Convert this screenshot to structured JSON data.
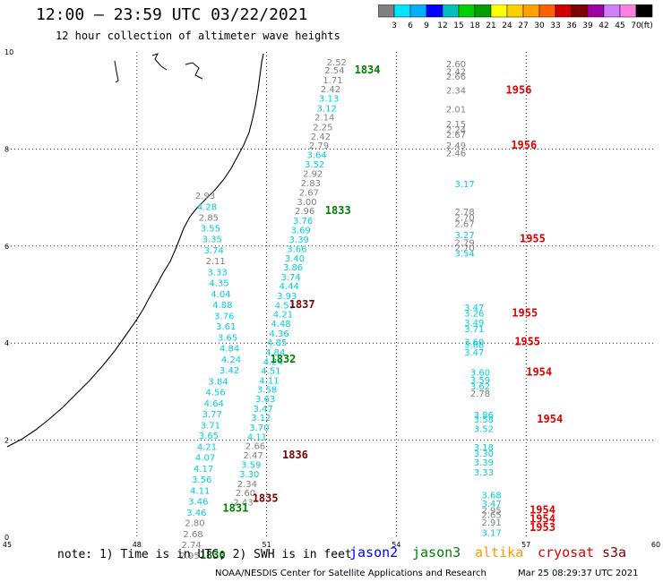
{
  "title": "12:00 – 23:59 UTC 03/22/2021",
  "subtitle": "12 hour collection of altimeter wave heights",
  "colorbar": {
    "colors": [
      "#808080",
      "#00e5ff",
      "#00b0ff",
      "#0000ff",
      "#00bfbf",
      "#00d000",
      "#00a000",
      "#ffff00",
      "#ffd000",
      "#ffa000",
      "#ff6000",
      "#d00000",
      "#800000",
      "#a000a0",
      "#d080ff",
      "#ff80e0",
      "#000000"
    ],
    "labels": [
      "3",
      "6",
      "9",
      "12",
      "15",
      "18",
      "21",
      "24",
      "27",
      "30",
      "33",
      "36",
      "39",
      "42",
      "45",
      "70"
    ],
    "unit": "(ft)"
  },
  "axes": {
    "x_ticks": [
      "45",
      "48",
      "51",
      "54",
      "57",
      "60"
    ],
    "y_ticks": [
      "0",
      "2",
      "4",
      "6",
      "8",
      "10"
    ]
  },
  "note": "note: 1) Time is in UTC; 2) SWH is in feet",
  "missions": [
    {
      "name": "jason2",
      "color": "#0000ff"
    },
    {
      "name": "jason3",
      "color": "#008000"
    },
    {
      "name": "altika",
      "color": "#ff9900"
    },
    {
      "name": "cryosat",
      "color": "#e00000"
    },
    {
      "name": "s3a",
      "color": "#800000"
    }
  ],
  "credit": "NOAA/NESDIS Center for Satellite Applications and Research",
  "timestamp": "Mar 25 08:29:37 UTC 2021",
  "colors": {
    "gray": "#808080",
    "cyan": "#00d0e0",
    "green": "#008000",
    "red": "#e00000",
    "maroon": "#800000"
  },
  "chart_data": {
    "type": "scatter",
    "xlim": [
      45,
      60
    ],
    "ylim": [
      0,
      10
    ],
    "points": [
      {
        "x": 52.62,
        "y": 9.8,
        "v": "2.52",
        "c": "gray"
      },
      {
        "x": 52.57,
        "y": 9.63,
        "v": "2.54",
        "c": "gray"
      },
      {
        "x": 52.53,
        "y": 9.43,
        "v": "1.71",
        "c": "gray"
      },
      {
        "x": 52.48,
        "y": 9.24,
        "v": "2.42",
        "c": "gray"
      },
      {
        "x": 52.44,
        "y": 9.05,
        "v": "3.13",
        "c": "cyan"
      },
      {
        "x": 52.39,
        "y": 8.85,
        "v": "3.12",
        "c": "cyan"
      },
      {
        "x": 52.34,
        "y": 8.66,
        "v": "2.14",
        "c": "gray"
      },
      {
        "x": 52.3,
        "y": 8.46,
        "v": "2.25",
        "c": "gray"
      },
      {
        "x": 52.25,
        "y": 8.27,
        "v": "2.42",
        "c": "gray"
      },
      {
        "x": 52.21,
        "y": 8.08,
        "v": "2.79",
        "c": "gray"
      },
      {
        "x": 52.16,
        "y": 7.89,
        "v": "3.64",
        "c": "cyan"
      },
      {
        "x": 52.11,
        "y": 7.69,
        "v": "3.52",
        "c": "cyan"
      },
      {
        "x": 52.07,
        "y": 7.5,
        "v": "2.92",
        "c": "gray"
      },
      {
        "x": 52.02,
        "y": 7.31,
        "v": "2.83",
        "c": "gray"
      },
      {
        "x": 51.98,
        "y": 7.11,
        "v": "2.67",
        "c": "gray"
      },
      {
        "x": 51.93,
        "y": 6.92,
        "v": "3.00",
        "c": "gray"
      },
      {
        "x": 51.88,
        "y": 6.73,
        "v": "2.96",
        "c": "gray"
      },
      {
        "x": 51.84,
        "y": 6.53,
        "v": "3.76",
        "c": "cyan"
      },
      {
        "x": 51.79,
        "y": 6.34,
        "v": "3.69",
        "c": "cyan"
      },
      {
        "x": 51.75,
        "y": 6.14,
        "v": "3.39",
        "c": "cyan"
      },
      {
        "x": 51.7,
        "y": 5.95,
        "v": "3.66",
        "c": "cyan"
      },
      {
        "x": 51.65,
        "y": 5.76,
        "v": "3.40",
        "c": "cyan"
      },
      {
        "x": 51.61,
        "y": 5.57,
        "v": "3.86",
        "c": "cyan"
      },
      {
        "x": 51.56,
        "y": 5.37,
        "v": "3.74",
        "c": "cyan"
      },
      {
        "x": 51.52,
        "y": 5.18,
        "v": "4.44",
        "c": "cyan"
      },
      {
        "x": 51.47,
        "y": 4.98,
        "v": "3.93",
        "c": "cyan"
      },
      {
        "x": 51.42,
        "y": 4.79,
        "v": "4.53",
        "c": "cyan"
      },
      {
        "x": 51.38,
        "y": 4.6,
        "v": "4.21",
        "c": "cyan"
      },
      {
        "x": 51.33,
        "y": 4.41,
        "v": "4.48",
        "c": "cyan"
      },
      {
        "x": 51.29,
        "y": 4.21,
        "v": "4.36",
        "c": "cyan"
      },
      {
        "x": 51.24,
        "y": 4.02,
        "v": "4.85",
        "c": "cyan"
      },
      {
        "x": 51.2,
        "y": 3.82,
        "v": "4.84",
        "c": "cyan"
      },
      {
        "x": 51.15,
        "y": 3.63,
        "v": "4.24",
        "c": "cyan"
      },
      {
        "x": 51.1,
        "y": 3.44,
        "v": "4.51",
        "c": "cyan"
      },
      {
        "x": 51.06,
        "y": 3.24,
        "v": "4.11",
        "c": "cyan"
      },
      {
        "x": 51.01,
        "y": 3.05,
        "v": "3.58",
        "c": "cyan"
      },
      {
        "x": 50.97,
        "y": 2.86,
        "v": "3.63",
        "c": "cyan"
      },
      {
        "x": 50.92,
        "y": 2.66,
        "v": "3.47",
        "c": "cyan"
      },
      {
        "x": 50.87,
        "y": 2.47,
        "v": "3.12",
        "c": "cyan"
      },
      {
        "x": 50.83,
        "y": 2.27,
        "v": "3.70",
        "c": "cyan"
      },
      {
        "x": 50.78,
        "y": 2.08,
        "v": "4.11",
        "c": "cyan"
      },
      {
        "x": 50.74,
        "y": 1.89,
        "v": "2.66",
        "c": "gray"
      },
      {
        "x": 50.69,
        "y": 1.7,
        "v": "2.47",
        "c": "gray"
      },
      {
        "x": 50.64,
        "y": 1.5,
        "v": "3.59",
        "c": "cyan"
      },
      {
        "x": 50.6,
        "y": 1.31,
        "v": "3.30",
        "c": "cyan"
      },
      {
        "x": 50.55,
        "y": 1.11,
        "v": "2.34",
        "c": "gray"
      },
      {
        "x": 50.51,
        "y": 0.92,
        "v": "2.60",
        "c": "gray"
      },
      {
        "x": 50.46,
        "y": 0.73,
        "v": "2.43",
        "c": "gray"
      },
      {
        "x": 49.58,
        "y": 7.05,
        "v": "2.93",
        "c": "gray"
      },
      {
        "x": 49.62,
        "y": 6.82,
        "v": "4.28",
        "c": "cyan"
      },
      {
        "x": 49.66,
        "y": 6.6,
        "v": "2.85",
        "c": "gray"
      },
      {
        "x": 49.7,
        "y": 6.37,
        "v": "3.55",
        "c": "cyan"
      },
      {
        "x": 49.74,
        "y": 6.15,
        "v": "3.35",
        "c": "cyan"
      },
      {
        "x": 49.78,
        "y": 5.92,
        "v": "3.74",
        "c": "cyan"
      },
      {
        "x": 49.82,
        "y": 5.7,
        "v": "2.11",
        "c": "gray"
      },
      {
        "x": 49.86,
        "y": 5.47,
        "v": "3.33",
        "c": "cyan"
      },
      {
        "x": 49.9,
        "y": 5.25,
        "v": "4.35",
        "c": "cyan"
      },
      {
        "x": 49.94,
        "y": 5.02,
        "v": "4.04",
        "c": "cyan"
      },
      {
        "x": 49.98,
        "y": 4.8,
        "v": "4.88",
        "c": "cyan"
      },
      {
        "x": 50.02,
        "y": 4.57,
        "v": "3.76",
        "c": "cyan"
      },
      {
        "x": 50.06,
        "y": 4.35,
        "v": "3.61",
        "c": "cyan"
      },
      {
        "x": 50.1,
        "y": 4.12,
        "v": "3.65",
        "c": "cyan"
      },
      {
        "x": 50.14,
        "y": 3.9,
        "v": "4.84",
        "c": "cyan"
      },
      {
        "x": 50.18,
        "y": 3.67,
        "v": "4.24",
        "c": "cyan"
      },
      {
        "x": 50.14,
        "y": 3.45,
        "v": "3.42",
        "c": "cyan"
      },
      {
        "x": 49.88,
        "y": 3.22,
        "v": "3.84",
        "c": "cyan"
      },
      {
        "x": 49.82,
        "y": 3.0,
        "v": "4.56",
        "c": "cyan"
      },
      {
        "x": 49.78,
        "y": 2.77,
        "v": "4.64",
        "c": "cyan"
      },
      {
        "x": 49.74,
        "y": 2.55,
        "v": "3.77",
        "c": "cyan"
      },
      {
        "x": 49.7,
        "y": 2.32,
        "v": "3.71",
        "c": "cyan"
      },
      {
        "x": 49.66,
        "y": 2.1,
        "v": "3.65",
        "c": "cyan"
      },
      {
        "x": 49.62,
        "y": 1.87,
        "v": "4.21",
        "c": "cyan"
      },
      {
        "x": 49.58,
        "y": 1.65,
        "v": "4.07",
        "c": "cyan"
      },
      {
        "x": 49.54,
        "y": 1.42,
        "v": "4.17",
        "c": "cyan"
      },
      {
        "x": 49.5,
        "y": 1.2,
        "v": "3.56",
        "c": "cyan"
      },
      {
        "x": 49.46,
        "y": 0.97,
        "v": "4.11",
        "c": "cyan"
      },
      {
        "x": 49.42,
        "y": 0.75,
        "v": "3.46",
        "c": "cyan"
      },
      {
        "x": 49.38,
        "y": 0.52,
        "v": "3.46",
        "c": "cyan"
      },
      {
        "x": 49.34,
        "y": 0.3,
        "v": "2.80",
        "c": "gray"
      },
      {
        "x": 49.3,
        "y": 0.07,
        "v": "2.68",
        "c": "gray"
      },
      {
        "x": 49.26,
        "y": -0.15,
        "v": "2.74",
        "c": "gray"
      },
      {
        "x": 49.22,
        "y": -0.37,
        "v": "2.95",
        "c": "gray"
      },
      {
        "x": 55.38,
        "y": 9.76,
        "v": "2.60",
        "c": "gray"
      },
      {
        "x": 55.38,
        "y": 9.6,
        "v": "2.42",
        "c": "gray"
      },
      {
        "x": 55.38,
        "y": 9.5,
        "v": "2.66",
        "c": "gray"
      },
      {
        "x": 55.38,
        "y": 9.22,
        "v": "2.34",
        "c": "gray"
      },
      {
        "x": 55.38,
        "y": 8.83,
        "v": "2.01",
        "c": "gray"
      },
      {
        "x": 55.38,
        "y": 8.52,
        "v": "2.15",
        "c": "gray"
      },
      {
        "x": 55.38,
        "y": 8.4,
        "v": "2.24",
        "c": "gray"
      },
      {
        "x": 55.38,
        "y": 8.3,
        "v": "2.67",
        "c": "gray"
      },
      {
        "x": 55.38,
        "y": 8.08,
        "v": "2.49",
        "c": "gray"
      },
      {
        "x": 55.38,
        "y": 7.92,
        "v": "2.46",
        "c": "gray"
      },
      {
        "x": 55.58,
        "y": 7.29,
        "v": "3.17",
        "c": "cyan"
      },
      {
        "x": 55.58,
        "y": 6.72,
        "v": "2.78",
        "c": "gray"
      },
      {
        "x": 55.58,
        "y": 6.6,
        "v": "2.70",
        "c": "gray"
      },
      {
        "x": 55.58,
        "y": 6.47,
        "v": "2.67",
        "c": "gray"
      },
      {
        "x": 55.58,
        "y": 6.24,
        "v": "3.27",
        "c": "cyan"
      },
      {
        "x": 55.58,
        "y": 6.08,
        "v": "2.79",
        "c": "gray"
      },
      {
        "x": 55.58,
        "y": 5.97,
        "v": "2.70",
        "c": "gray"
      },
      {
        "x": 55.58,
        "y": 5.86,
        "v": "3.54",
        "c": "cyan"
      },
      {
        "x": 55.8,
        "y": 4.74,
        "v": "3.47",
        "c": "cyan"
      },
      {
        "x": 55.8,
        "y": 4.62,
        "v": "3.26",
        "c": "cyan"
      },
      {
        "x": 55.8,
        "y": 4.43,
        "v": "3.49",
        "c": "cyan"
      },
      {
        "x": 55.8,
        "y": 4.3,
        "v": "3.71",
        "c": "cyan"
      },
      {
        "x": 55.8,
        "y": 4.03,
        "v": "3.60",
        "c": "cyan"
      },
      {
        "x": 55.8,
        "y": 3.98,
        "v": "3.68",
        "c": "cyan"
      },
      {
        "x": 55.8,
        "y": 3.82,
        "v": "3.47",
        "c": "cyan"
      },
      {
        "x": 55.94,
        "y": 3.4,
        "v": "3.60",
        "c": "cyan"
      },
      {
        "x": 55.94,
        "y": 3.25,
        "v": "3.59",
        "c": "cyan"
      },
      {
        "x": 55.94,
        "y": 3.12,
        "v": "3.62",
        "c": "cyan"
      },
      {
        "x": 55.94,
        "y": 2.97,
        "v": "2.78",
        "c": "gray"
      },
      {
        "x": 56.02,
        "y": 2.53,
        "v": "3.86",
        "c": "cyan"
      },
      {
        "x": 56.02,
        "y": 2.44,
        "v": "3.58",
        "c": "cyan"
      },
      {
        "x": 56.02,
        "y": 2.24,
        "v": "3.52",
        "c": "cyan"
      },
      {
        "x": 56.02,
        "y": 1.86,
        "v": "3.18",
        "c": "cyan"
      },
      {
        "x": 56.02,
        "y": 1.73,
        "v": "3.30",
        "c": "cyan"
      },
      {
        "x": 56.02,
        "y": 1.55,
        "v": "3.39",
        "c": "cyan"
      },
      {
        "x": 56.02,
        "y": 1.35,
        "v": "3.33",
        "c": "cyan"
      },
      {
        "x": 56.2,
        "y": 0.88,
        "v": "3.68",
        "c": "cyan"
      },
      {
        "x": 56.2,
        "y": 0.7,
        "v": "3.47",
        "c": "cyan"
      },
      {
        "x": 56.2,
        "y": 0.56,
        "v": "2.95",
        "c": "gray"
      },
      {
        "x": 56.2,
        "y": 0.47,
        "v": "2.65",
        "c": "gray"
      },
      {
        "x": 56.2,
        "y": 0.31,
        "v": "2.91",
        "c": "gray"
      },
      {
        "x": 56.2,
        "y": 0.1,
        "v": "3.17",
        "c": "cyan"
      }
    ],
    "pass_labels": [
      {
        "x": 53.33,
        "y": 9.63,
        "t": "1834",
        "c": "green"
      },
      {
        "x": 52.65,
        "y": 6.73,
        "t": "1833",
        "c": "green"
      },
      {
        "x": 51.82,
        "y": 4.8,
        "t": "1837",
        "c": "maroon"
      },
      {
        "x": 51.38,
        "y": 3.67,
        "t": "1832",
        "c": "green"
      },
      {
        "x": 51.66,
        "y": 1.7,
        "t": "1836",
        "c": "maroon"
      },
      {
        "x": 50.28,
        "y": 0.6,
        "t": "1831",
        "c": "green"
      },
      {
        "x": 50.97,
        "y": 0.8,
        "t": "1835",
        "c": "maroon"
      },
      {
        "x": 49.75,
        "y": -0.37,
        "t": "1830",
        "c": "green"
      },
      {
        "x": 56.83,
        "y": 9.22,
        "t": "1956",
        "c": "red"
      },
      {
        "x": 56.95,
        "y": 8.08,
        "t": "1956",
        "c": "red"
      },
      {
        "x": 57.15,
        "y": 6.15,
        "t": "1955",
        "c": "red"
      },
      {
        "x": 56.97,
        "y": 4.62,
        "t": "1955",
        "c": "red"
      },
      {
        "x": 57.03,
        "y": 4.03,
        "t": "1955",
        "c": "red"
      },
      {
        "x": 57.3,
        "y": 3.4,
        "t": "1954",
        "c": "red"
      },
      {
        "x": 57.55,
        "y": 2.44,
        "t": "1954",
        "c": "red"
      },
      {
        "x": 57.38,
        "y": 0.56,
        "t": "1954",
        "c": "red"
      },
      {
        "x": 57.38,
        "y": 0.38,
        "t": "1954",
        "c": "red"
      },
      {
        "x": 57.38,
        "y": 0.2,
        "t": "1953",
        "c": "red"
      }
    ]
  }
}
